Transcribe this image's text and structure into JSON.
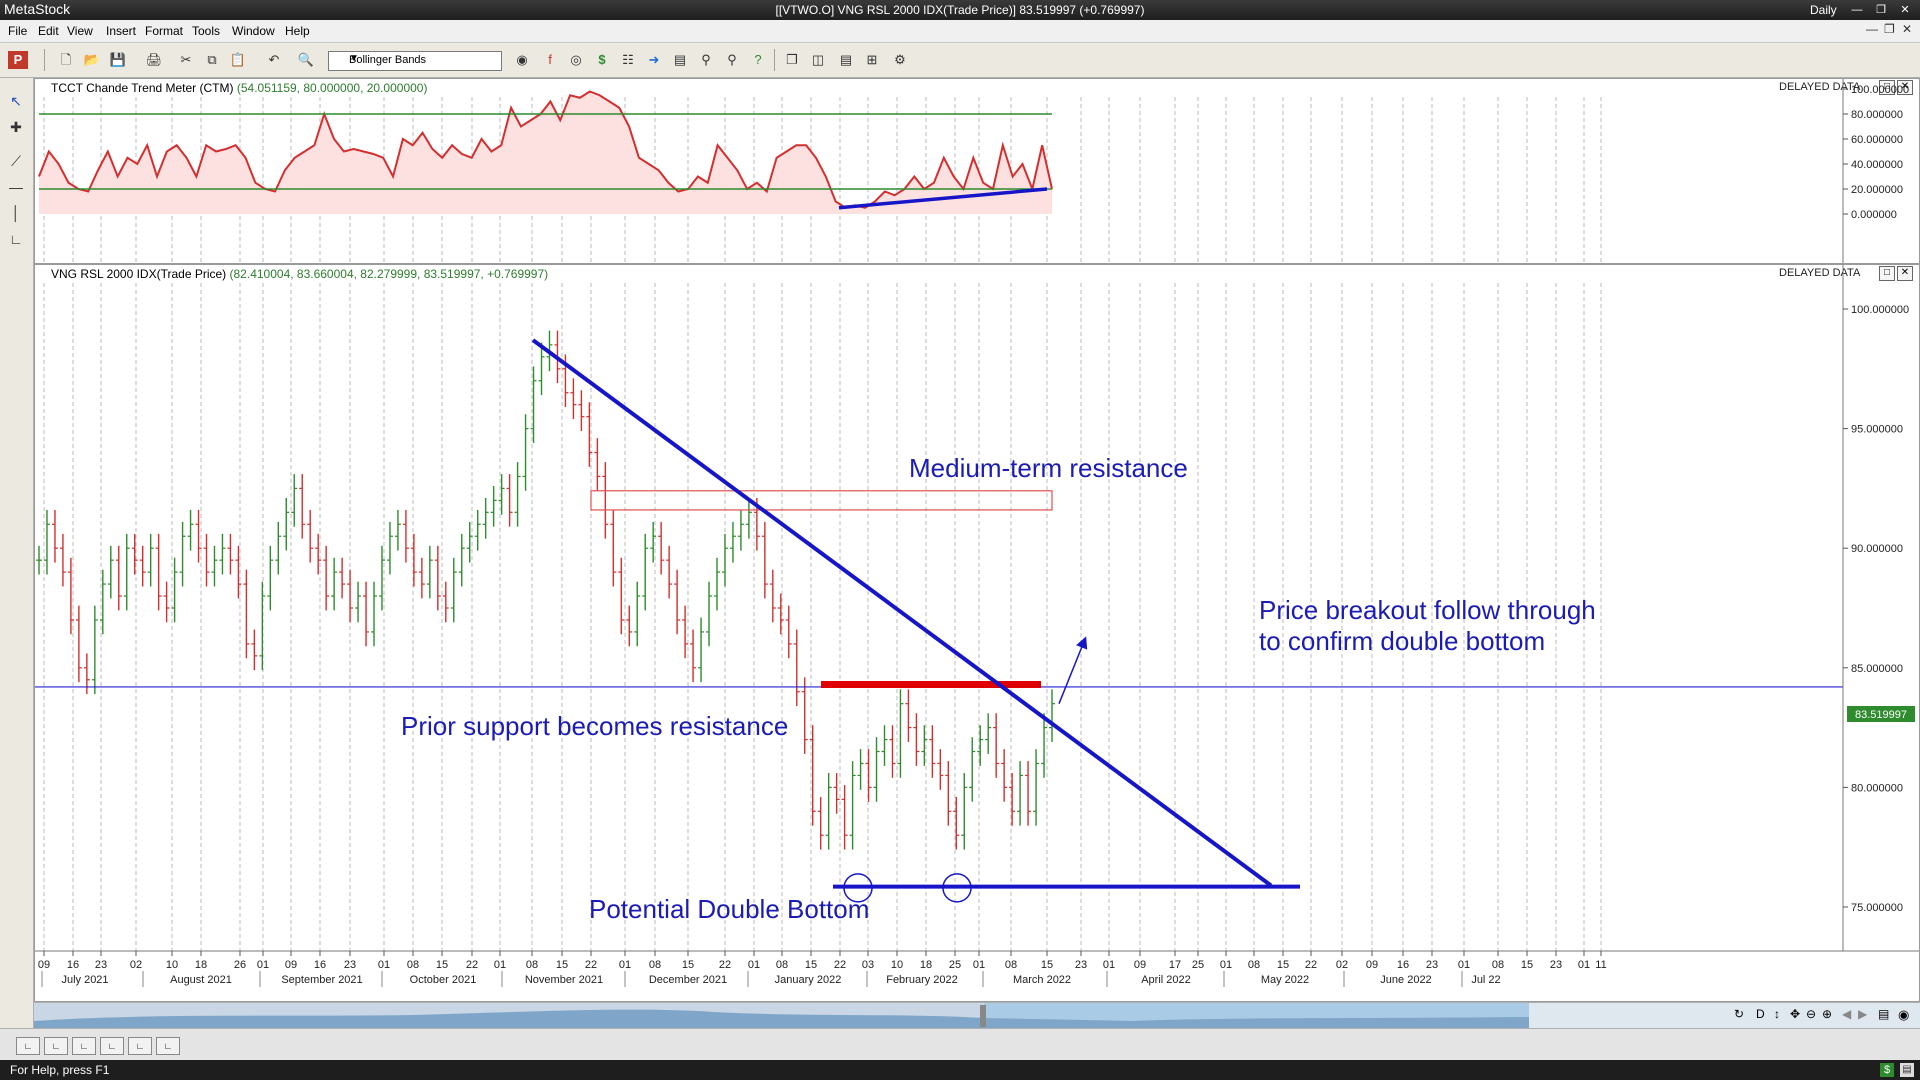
{
  "window": {
    "app_title": "MetaStock",
    "doc_title": "[[VTWO.O] VNG RSL 2000 IDX(Trade Price)]  83.519997 (+0.769997)",
    "periodicity": "Daily"
  },
  "menu": [
    "File",
    "Edit",
    "View",
    "Insert",
    "Format",
    "Tools",
    "Window",
    "Help"
  ],
  "toolbar": {
    "indicator_combo": "Bollinger Bands"
  },
  "indicator_pane": {
    "title_name": "TCCT Chande Trend Meter (CTM)",
    "title_values": "(54.051159, 80.000000, 20.000000)",
    "delayed": "DELAYED DATA",
    "axis_ticks": [
      "100.000000",
      "80.000000",
      "60.000000",
      "40.000000",
      "20.000000",
      "0.000000"
    ]
  },
  "price_pane": {
    "title_name": "VNG RSL 2000 IDX(Trade Price)",
    "title_values": "(82.410004, 83.660004, 82.279999, 83.519997, +0.769997)",
    "delayed": "DELAYED DATA",
    "axis_ticks": [
      "100.000000",
      "95.000000",
      "90.000000",
      "85.000000",
      "80.000000",
      "75.000000"
    ],
    "last_price": "83.519997"
  },
  "annotations": {
    "medium_term": "Medium-term resistance",
    "breakout_1": "Price breakout follow through",
    "breakout_2": "to confirm double bottom",
    "prior_support": "Prior support becomes resistance",
    "double_bottom": "Potential Double Bottom"
  },
  "x_axis": {
    "days": [
      "09",
      "16",
      "23",
      "02",
      "10",
      "18",
      "26",
      "01",
      "09",
      "16",
      "23",
      "01",
      "08",
      "15",
      "22",
      "01",
      "08",
      "15",
      "22",
      "01",
      "08",
      "15",
      "22",
      "01",
      "08",
      "15",
      "22",
      "03",
      "10",
      "18",
      "25",
      "01",
      "08",
      "15",
      "23",
      "01",
      "09",
      "17",
      "25",
      "01",
      "08",
      "15",
      "22",
      "02",
      "09",
      "16",
      "23",
      "01",
      "08",
      "15",
      "23",
      "01",
      "11"
    ],
    "months": [
      "July 2021",
      "August 2021",
      "September 2021",
      "October 2021",
      "November 2021",
      "December 2021",
      "January 2022",
      "February 2022",
      "March 2022",
      "April 2022",
      "May 2022",
      "June 2022",
      "Jul 22"
    ]
  },
  "status": {
    "help": "For Help, press F1"
  },
  "colors": {
    "bearish": "#d32f2f",
    "bullish": "#2e8b2e",
    "trend": "#1616c8",
    "ctm": "#d32f2f",
    "ctm_fill": "#fde0e0",
    "band": "#2e8b2e"
  }
}
